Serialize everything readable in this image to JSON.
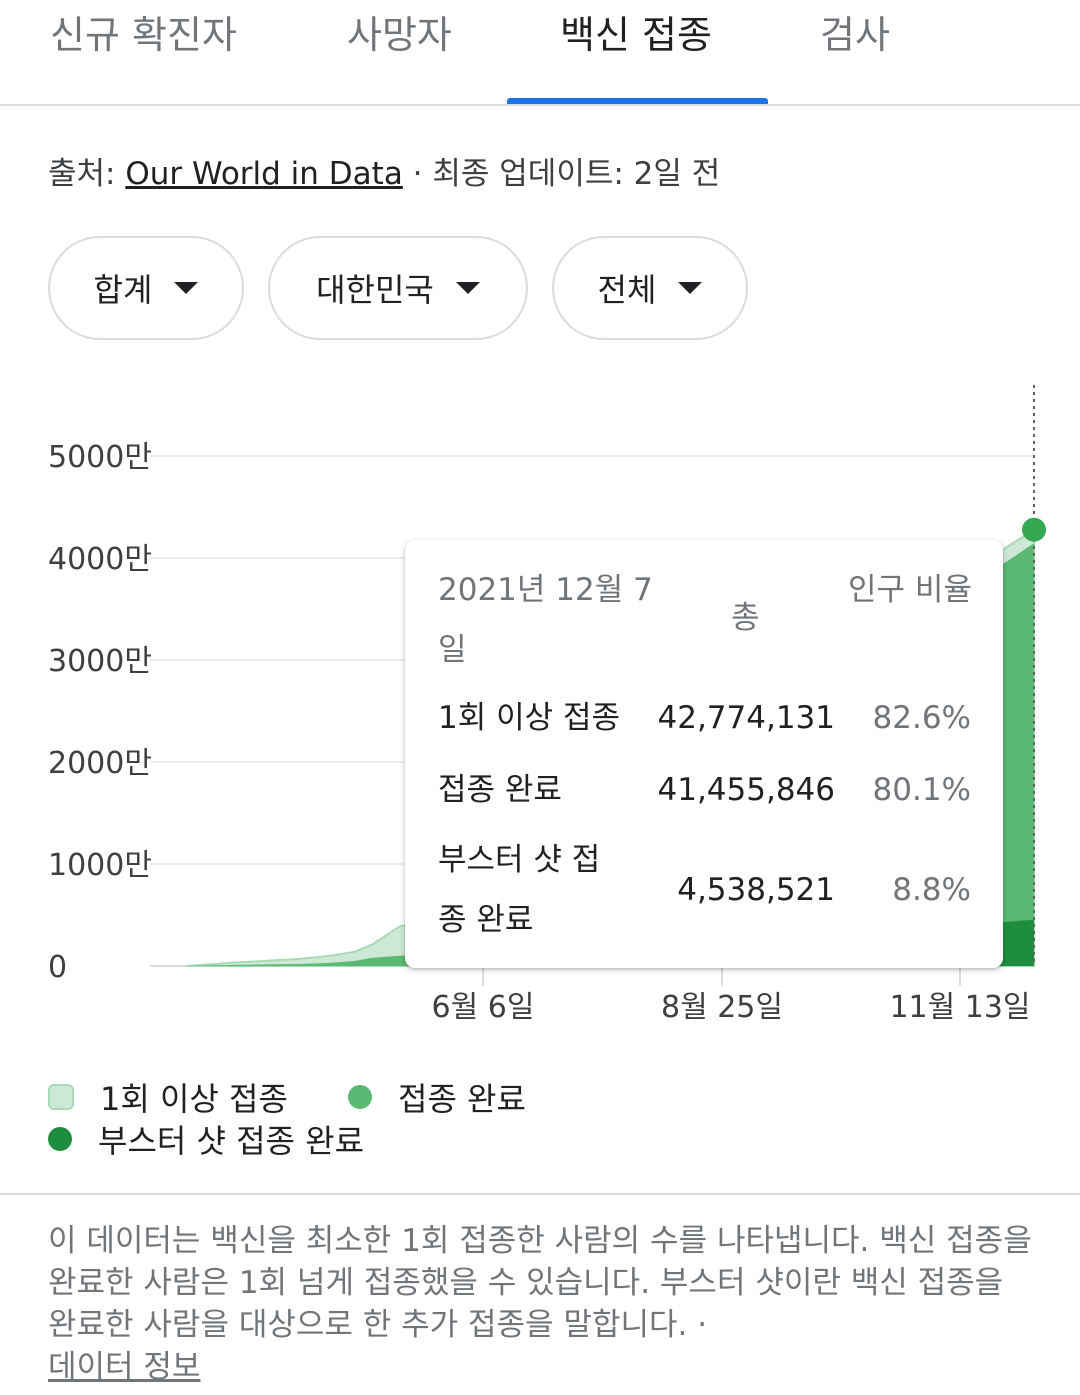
{
  "tabs": [
    "신규 확진자",
    "사망자",
    "백신 접종",
    "검사"
  ],
  "source": {
    "prefix": "출처: ",
    "link": "Our World in Data",
    "updated": " · 최종 업데이트: 2일 전"
  },
  "filters": [
    "합계",
    "대한민국",
    "전체"
  ],
  "colors": {
    "first_dose": "#cde9d5",
    "fully": "#5bb974",
    "booster": "#1e8e3e",
    "accent": "#1a73e8"
  },
  "chart_data": {
    "type": "area",
    "y_ticks": [
      "5000만",
      "4000만",
      "3000만",
      "2000만",
      "1000만",
      "0"
    ],
    "ylim": [
      0,
      50000000
    ],
    "x_ticks": [
      "6월 6일",
      "8월 25일",
      "11월 13일"
    ],
    "series": [
      {
        "name": "1회 이상 접종",
        "values": [
          0,
          300000,
          700000,
          1000000,
          1400000,
          2100000,
          3900000,
          4200000,
          42774131
        ]
      },
      {
        "name": "접종 완료",
        "values": [
          0,
          100000,
          200000,
          300000,
          500000,
          800000,
          1000000,
          1100000,
          41455846
        ]
      },
      {
        "name": "부스터 샷 접종 완료",
        "values": [
          0,
          0,
          0,
          0,
          0,
          0,
          0,
          0,
          4538521
        ]
      }
    ],
    "grid": true
  },
  "tooltip": {
    "date": "2021년 12월 7일",
    "col_total": "총",
    "col_pct": "인구 비율",
    "rows": [
      {
        "label": "1회 이상 접종",
        "total": "42,774,131",
        "pct": "82.6%"
      },
      {
        "label": "접종 완료",
        "total": "41,455,846",
        "pct": "80.1%"
      },
      {
        "label": "부스터 샷 접종 완료",
        "total": "4,538,521",
        "pct": "8.8%"
      }
    ]
  },
  "legend": [
    "1회 이상 접종",
    "접종 완료",
    "부스터 샷 접종 완료"
  ],
  "description": "이 데이터는 백신을 최소한 1회 접종한 사람의 수를 나타냅니다. 백신 접종을 완료한 사람은 1회 넘게 접종했을 수 있습니다. 부스터 샷이란 백신 접종을 완료한 사람을 대상으로 한 추가 접종을 말합니다.",
  "data_info_link": "데이터 정보"
}
